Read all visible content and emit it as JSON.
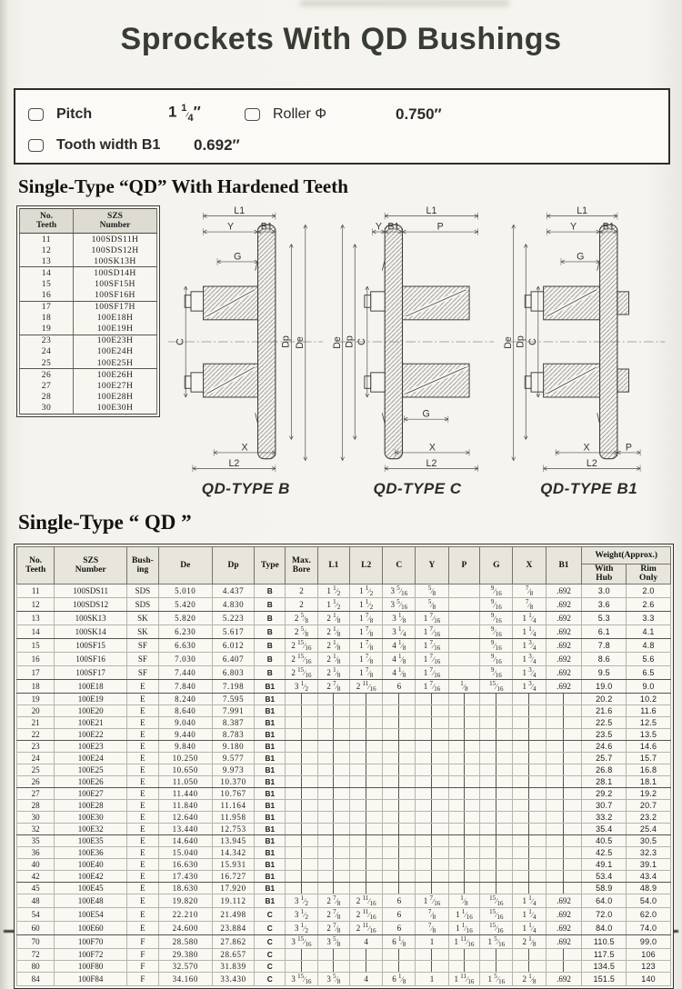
{
  "page": {
    "title": "Sprockets With QD Bushings"
  },
  "specs": {
    "pitch_label": "Pitch",
    "pitch_value": "1 1/4″",
    "roller_label": "Roller Φ",
    "roller_value": "0.750″",
    "tooth_label": "Tooth width B1",
    "tooth_value": "0.692″"
  },
  "sections": {
    "hardened_heading": "Single-Type “QD” With Hardened Teeth",
    "qd_heading": "Single-Type “ QD ”"
  },
  "hardened_table": {
    "col1": "No.|Teeth",
    "col2": "SZS|Number",
    "rows": [
      [
        "11",
        "100SDS11H"
      ],
      [
        "12",
        "100SDS12H"
      ],
      [
        "13",
        "100SK13H"
      ],
      [
        "14",
        "100SD14H"
      ],
      [
        "15",
        "100SF15H"
      ],
      [
        "16",
        "100SF16H"
      ],
      [
        "17",
        "100SF17H"
      ],
      [
        "18",
        "100E18H"
      ],
      [
        "19",
        "100E19H"
      ],
      [
        "23",
        "100E23H"
      ],
      [
        "24",
        "100E24H"
      ],
      [
        "25",
        "100E25H"
      ],
      [
        "26",
        "100E26H"
      ],
      [
        "27",
        "100E27H"
      ],
      [
        "28",
        "100E28H"
      ],
      [
        "30",
        "100E30H"
      ]
    ],
    "group_ends": [
      "13",
      "16",
      "19",
      "25"
    ]
  },
  "diagrams": [
    {
      "caption": "QD-TYPE B",
      "dims": [
        "L1",
        "Y",
        "B1",
        "G",
        "C",
        "Dp",
        "De",
        "X",
        "L2"
      ]
    },
    {
      "caption": "QD-TYPE C",
      "dims": [
        "L1",
        "Y",
        "B1",
        "P",
        "De",
        "Dp",
        "C",
        "G",
        "X",
        "L2"
      ]
    },
    {
      "caption": "QD-TYPE B1",
      "dims": [
        "L1",
        "Y",
        "B1",
        "G",
        "De",
        "Dp",
        "C",
        "X",
        "P",
        "L2"
      ]
    }
  ],
  "main_table": {
    "col_headers": [
      "No.|Teeth",
      "SZS|Number",
      "Bush-|ing",
      "De",
      "Dp",
      "Type",
      "Max.|Bore",
      "L1",
      "L2",
      "C",
      "Y",
      "P",
      "G",
      "X",
      "B1"
    ],
    "weight_header": "Weight(Approx.)",
    "weight_sub": [
      "With|Hub",
      "Rim|Only"
    ],
    "rows": [
      [
        "11",
        "100SDS11",
        "SDS",
        "5.010",
        "4.437",
        "B",
        "2",
        "1 1/2",
        "1 1/2",
        "3 5/16",
        "5/8",
        "",
        "9/16",
        "7/8",
        ".692",
        "3.0",
        "2.0"
      ],
      [
        "12",
        "100SDS12",
        "SDS",
        "5.420",
        "4.830",
        "B",
        "2",
        "1 1/2",
        "1 1/2",
        "3 5/16",
        "5/8",
        "",
        "9/16",
        "7/8",
        ".692",
        "3.6",
        "2.6"
      ],
      [
        "13",
        "100SK13",
        "SK",
        "5.820",
        "5.223",
        "B",
        "2 5/8",
        "2 1/8",
        "1 7/8",
        "3 1/8",
        "1 7/16",
        "",
        "9/16",
        "1 1/4",
        ".692",
        "5.3",
        "3.3"
      ],
      [
        "14",
        "100SK14",
        "SK",
        "6.230",
        "5.617",
        "B",
        "2 5/8",
        "2 1/8",
        "1 7/8",
        "3 1/4",
        "1 7/16",
        "",
        "9/16",
        "1 1/4",
        ".692",
        "6.1",
        "4.1"
      ],
      [
        "15",
        "100SF15",
        "SF",
        "6.630",
        "6.012",
        "B",
        "2 15/16",
        "2 1/8",
        "1 7/8",
        "4 1/8",
        "1 7/16",
        "",
        "9/16",
        "1 3/4",
        ".692",
        "7.8",
        "4.8"
      ],
      [
        "16",
        "100SF16",
        "SF",
        "7.030",
        "6.407",
        "B",
        "2 15/16",
        "2 1/8",
        "1 7/8",
        "4 1/8",
        "1 7/16",
        "",
        "9/16",
        "1 3/4",
        ".692",
        "8.6",
        "5.6"
      ],
      [
        "17",
        "100SF17",
        "SF",
        "7.440",
        "6.803",
        "B",
        "2 15/16",
        "2 1/8",
        "1 7/8",
        "4 1/8",
        "1 7/16",
        "",
        "9/16",
        "1 3/4",
        ".692",
        "9.5",
        "6.5"
      ],
      [
        "18",
        "100E18",
        "E",
        "7.840",
        "7.198",
        "B1",
        "3 1/2",
        "2 7/8",
        "2 11/16",
        "6",
        "1 7/16",
        "1/8",
        "15/16",
        "1 3/4",
        ".692",
        "19.0",
        "9.0"
      ],
      [
        "19",
        "100E19",
        "E",
        "8.240",
        "7.595",
        "B1",
        "│",
        "│",
        "│",
        "│",
        "│",
        "│",
        "│",
        "│",
        "│",
        "20.2",
        "10.2"
      ],
      [
        "20",
        "100E20",
        "E",
        "8.640",
        "7.991",
        "B1",
        "│",
        "│",
        "│",
        "│",
        "│",
        "│",
        "│",
        "│",
        "│",
        "21.6",
        "11.6"
      ],
      [
        "21",
        "100E21",
        "E",
        "9.040",
        "8.387",
        "B1",
        "│",
        "│",
        "│",
        "│",
        "│",
        "│",
        "│",
        "│",
        "│",
        "22.5",
        "12.5"
      ],
      [
        "22",
        "100E22",
        "E",
        "9.440",
        "8.783",
        "B1",
        "│",
        "│",
        "│",
        "│",
        "│",
        "│",
        "│",
        "│",
        "│",
        "23.5",
        "13.5"
      ],
      [
        "23",
        "100E23",
        "E",
        "9.840",
        "9.180",
        "B1",
        "│",
        "│",
        "│",
        "│",
        "│",
        "│",
        "│",
        "│",
        "│",
        "24.6",
        "14.6"
      ],
      [
        "24",
        "100E24",
        "E",
        "10.250",
        "9.577",
        "B1",
        "│",
        "│",
        "│",
        "│",
        "│",
        "│",
        "│",
        "│",
        "│",
        "25.7",
        "15.7"
      ],
      [
        "25",
        "100E25",
        "E",
        "10.650",
        "9.973",
        "B1",
        "│",
        "│",
        "│",
        "│",
        "│",
        "│",
        "│",
        "│",
        "│",
        "26.8",
        "16.8"
      ],
      [
        "26",
        "100E26",
        "E",
        "11.050",
        "10.370",
        "B1",
        "│",
        "│",
        "│",
        "│",
        "│",
        "│",
        "│",
        "│",
        "│",
        "28.1",
        "18.1"
      ],
      [
        "27",
        "100E27",
        "E",
        "11.440",
        "10.767",
        "B1",
        "│",
        "│",
        "│",
        "│",
        "│",
        "│",
        "│",
        "│",
        "│",
        "29.2",
        "19.2"
      ],
      [
        "28",
        "100E28",
        "E",
        "11.840",
        "11.164",
        "B1",
        "│",
        "│",
        "│",
        "│",
        "│",
        "│",
        "│",
        "│",
        "│",
        "30.7",
        "20.7"
      ],
      [
        "30",
        "100E30",
        "E",
        "12.640",
        "11.958",
        "B1",
        "│",
        "│",
        "│",
        "│",
        "│",
        "│",
        "│",
        "│",
        "│",
        "33.2",
        "23.2"
      ],
      [
        "32",
        "100E32",
        "E",
        "13.440",
        "12.753",
        "B1",
        "│",
        "│",
        "│",
        "│",
        "│",
        "│",
        "│",
        "│",
        "│",
        "35.4",
        "25.4"
      ],
      [
        "35",
        "100E35",
        "E",
        "14.640",
        "13.945",
        "B1",
        "│",
        "│",
        "│",
        "│",
        "│",
        "│",
        "│",
        "│",
        "│",
        "40.5",
        "30.5"
      ],
      [
        "36",
        "100E36",
        "E",
        "15.040",
        "14.342",
        "B1",
        "│",
        "│",
        "│",
        "│",
        "│",
        "│",
        "│",
        "│",
        "│",
        "42.5",
        "32.3"
      ],
      [
        "40",
        "100E40",
        "E",
        "16.630",
        "15.931",
        "B1",
        "│",
        "│",
        "│",
        "│",
        "│",
        "│",
        "│",
        "│",
        "│",
        "49.1",
        "39.1"
      ],
      [
        "42",
        "100E42",
        "E",
        "17.430",
        "16.727",
        "B1",
        "│",
        "│",
        "│",
        "│",
        "│",
        "│",
        "│",
        "│",
        "│",
        "53.4",
        "43.4"
      ],
      [
        "45",
        "100E45",
        "E",
        "18.630",
        "17.920",
        "B1",
        "│",
        "│",
        "│",
        "│",
        "│",
        "│",
        "│",
        "│",
        "│",
        "58.9",
        "48.9"
      ],
      [
        "48",
        "100E48",
        "E",
        "19.820",
        "19.112",
        "B1",
        "3 1/2",
        "2 7/8",
        "2 11/16",
        "6",
        "1 7/16",
        "1/8",
        "15/16",
        "1 1/4",
        ".692",
        "64.0",
        "54.0"
      ],
      [
        "54",
        "100E54",
        "E",
        "22.210",
        "21.498",
        "C",
        "3 1/2",
        "2 7/8",
        "2 11/16",
        "6",
        "7/8",
        "1 1/16",
        "15/16",
        "1 1/4",
        ".692",
        "72.0",
        "62.0"
      ],
      [
        "60",
        "100E60",
        "E",
        "24.600",
        "23.884",
        "C",
        "3 1/2",
        "2 7/8",
        "2 11/16",
        "6",
        "7/8",
        "1 1/16",
        "15/16",
        "1 1/4",
        ".692",
        "84.0",
        "74.0"
      ],
      [
        "70",
        "100F70",
        "F",
        "28.580",
        "27.862",
        "C",
        "3 15/16",
        "3 5/8",
        "4",
        "6 1/8",
        "1",
        "1 11/16",
        "1 5/16",
        "2 1/8",
        ".692",
        "110.5",
        "99.0"
      ],
      [
        "72",
        "100F72",
        "F",
        "29.380",
        "28.657",
        "C",
        "│",
        "│",
        "│",
        "│",
        "│",
        "│",
        "│",
        "│",
        "│",
        "117.5",
        "106"
      ],
      [
        "80",
        "100F80",
        "F",
        "32.570",
        "31.839",
        "C",
        "│",
        "│",
        "│",
        "│",
        "│",
        "│",
        "│",
        "│",
        "│",
        "134.5",
        "123"
      ],
      [
        "84",
        "100F84",
        "F",
        "34.160",
        "33.430",
        "C",
        "3 15/16",
        "3 5/8",
        "4",
        "6 1/8",
        "1",
        "1 11/16",
        "1 5/16",
        "2 1/8",
        ".692",
        "151.5",
        "140"
      ]
    ],
    "group_ends": [
      "12",
      "14",
      "17",
      "18",
      "22",
      "26",
      "32",
      "42",
      "60"
    ]
  }
}
